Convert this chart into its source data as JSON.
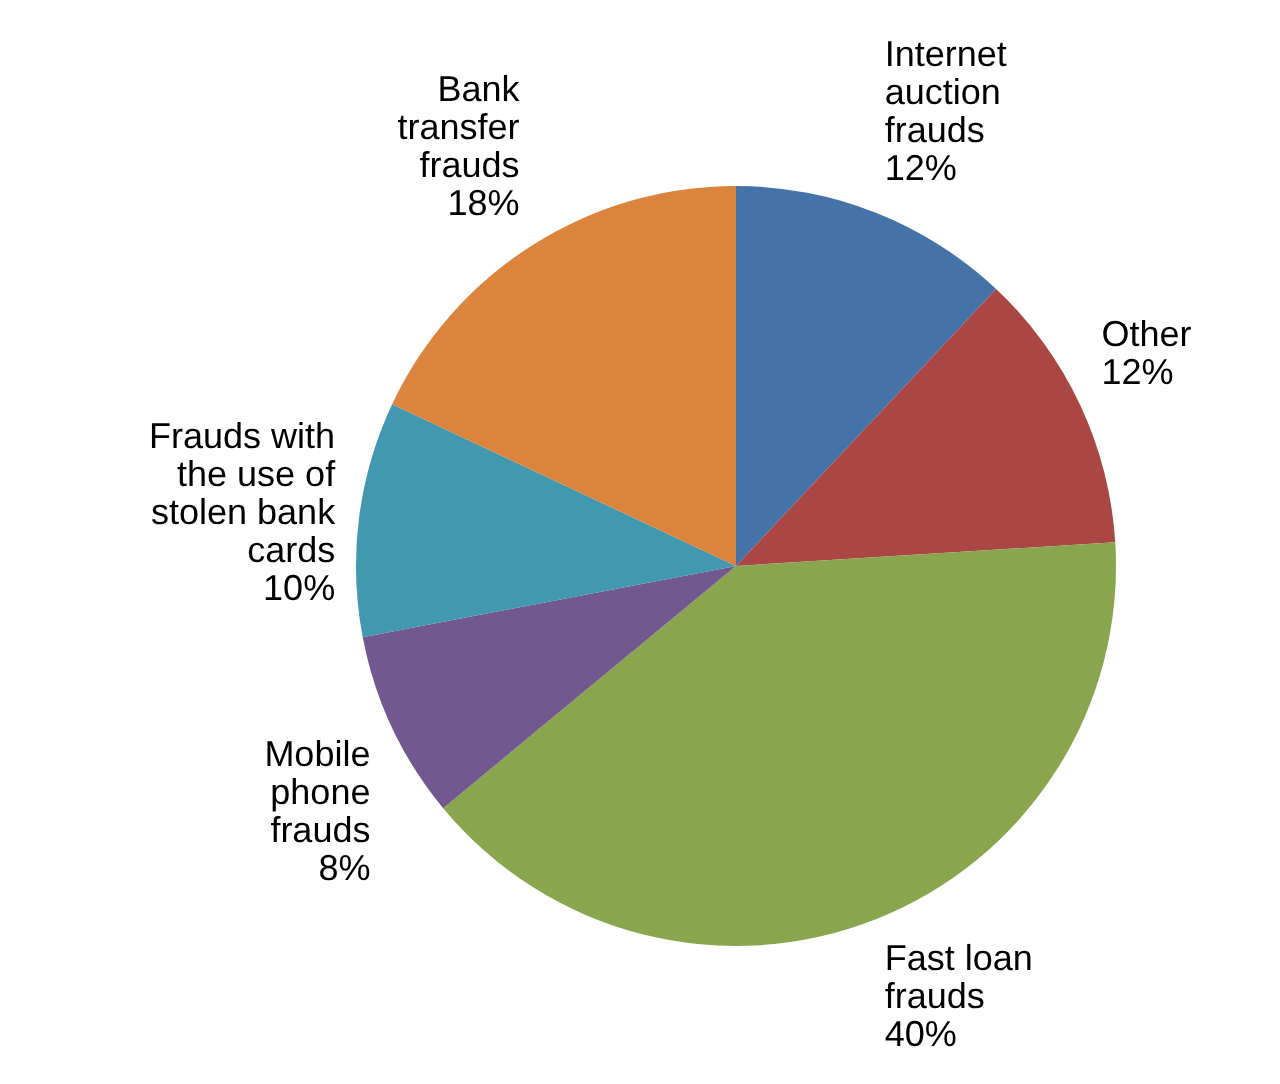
{
  "chart_data": {
    "type": "pie",
    "categories": [
      "Internet auction frauds",
      "Other",
      "Fast loan frauds",
      "Mobile phone frauds",
      "Frauds with the use of stolen bank cards",
      "Bank transfer frauds"
    ],
    "values": [
      12,
      12,
      40,
      8,
      10,
      18
    ],
    "value_labels": [
      "12%",
      "12%",
      "40%",
      "8%",
      "10%",
      "18%"
    ],
    "colors": [
      "#4572a7",
      "#aa4643",
      "#89a54e",
      "#71588f",
      "#4198af",
      "#db843d"
    ]
  }
}
